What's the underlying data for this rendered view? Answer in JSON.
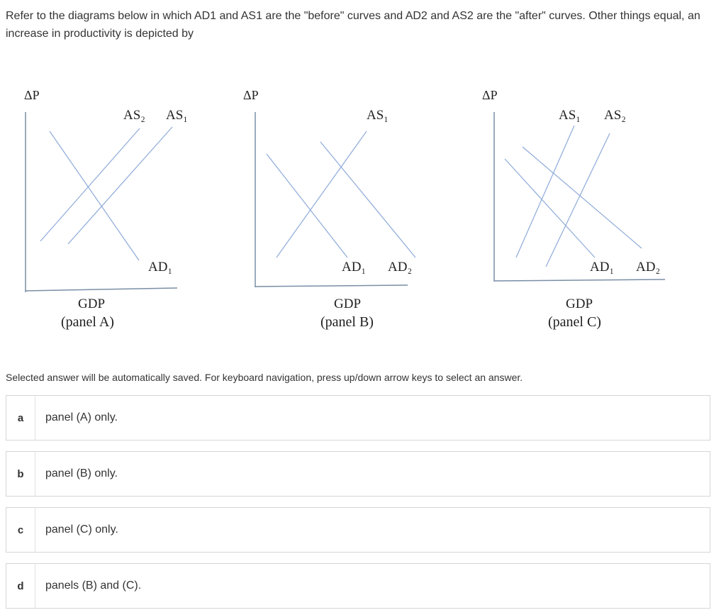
{
  "question": {
    "text": "Refer to the diagrams below in which AD1 and AS1 are the \"before\" curves and AD2 and AS2 are the \"after\" curves. Other things equal, an increase in productivity is depicted by"
  },
  "panels": [
    {
      "y_axis_label": "ΔP",
      "x_axis_label": "GDP",
      "caption": "(panel A)",
      "top_labels": [
        "AS₂",
        "AS₁"
      ],
      "bottom_labels": [
        "AD₁"
      ]
    },
    {
      "y_axis_label": "ΔP",
      "x_axis_label": "GDP",
      "caption": "(panel B)",
      "top_labels": [
        "AS₁"
      ],
      "bottom_labels": [
        "AD₁",
        "AD₂"
      ]
    },
    {
      "y_axis_label": "ΔP",
      "x_axis_label": "GDP",
      "caption": "(panel C)",
      "top_labels": [
        "AS₁",
        "AS₂"
      ],
      "bottom_labels": [
        "AD₁",
        "AD₂"
      ]
    }
  ],
  "instructions": "Selected answer will be automatically saved. For keyboard navigation, press up/down arrow keys to select an answer.",
  "options": [
    {
      "letter": "a",
      "text": "panel (A) only."
    },
    {
      "letter": "b",
      "text": "panel (B) only."
    },
    {
      "letter": "c",
      "text": "panel (C) only."
    },
    {
      "letter": "d",
      "text": "panels (B) and (C)."
    }
  ],
  "colors": {
    "curve": "#8eaad9",
    "axis": "#7a8ea6",
    "border": "#d6d6d6",
    "text": "#333333"
  }
}
